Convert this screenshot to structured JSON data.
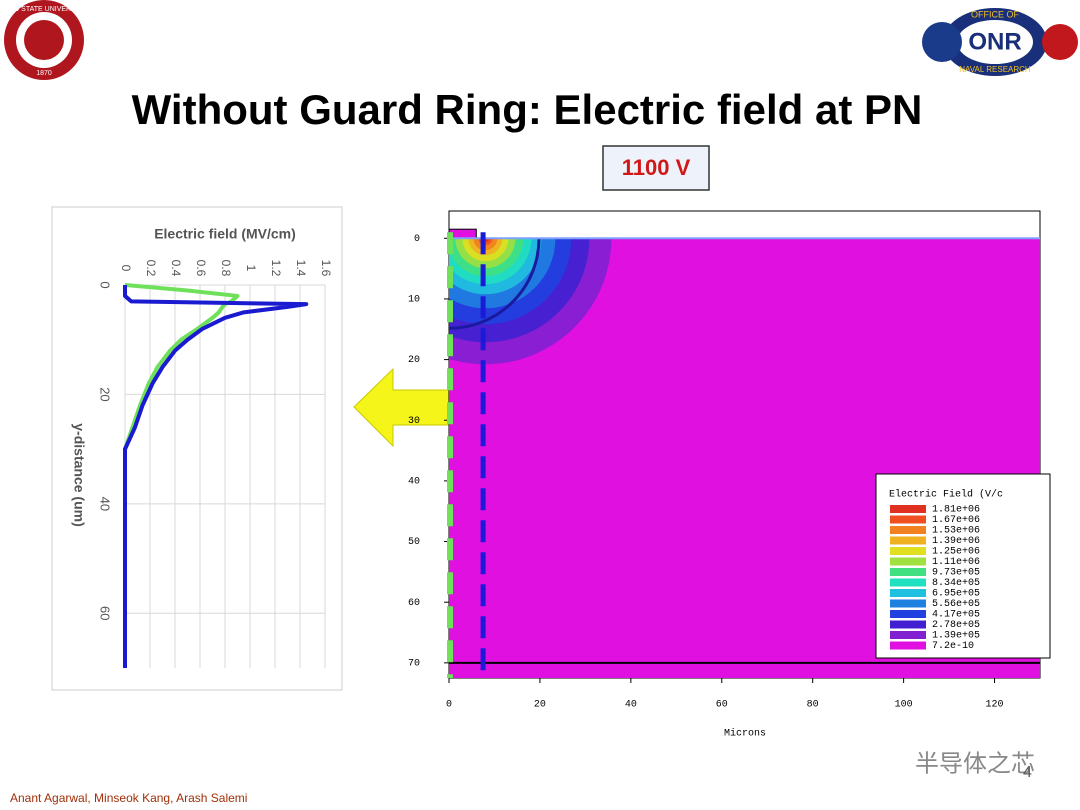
{
  "title": "Without Guard Ring: Electric field at PN",
  "voltage_box": "1100 V",
  "footer": "Anant Agarwal, Minseok Kang, Arash Salemi",
  "watermark": "半导体之芯",
  "page_number": "4",
  "logos": {
    "left_seal": [
      "OHIO STATE UNIVERSITY",
      "1870"
    ],
    "right": {
      "top": "OFFICE OF",
      "center": "ONR",
      "bottom": "NAVAL RESEARCH"
    }
  },
  "chart_data": [
    {
      "type": "line",
      "orientation": "rotated",
      "xlabel": "y-distance (um)",
      "ylabel": "Electric field (MV/cm)",
      "x": [
        0,
        1,
        2,
        3,
        3.5,
        4,
        5,
        6,
        8,
        10,
        12,
        15,
        18,
        22,
        26,
        30,
        40,
        50,
        60,
        70
      ],
      "xlim": [
        0,
        70
      ],
      "xticks": [
        0,
        20,
        40,
        60
      ],
      "ylim": [
        0,
        1.6
      ],
      "yticks": [
        0,
        0.2,
        0.4,
        0.6,
        0.8,
        1,
        1.2,
        1.4,
        1.6
      ],
      "grid": true,
      "series": [
        {
          "color": "#6ee05a",
          "values": [
            0,
            0.5,
            0.9,
            0.85,
            0.8,
            0.78,
            0.75,
            0.7,
            0.58,
            0.45,
            0.36,
            0.26,
            0.19,
            0.12,
            0.06,
            0,
            0,
            0,
            0,
            0
          ]
        },
        {
          "color": "#1a1ad0",
          "values": [
            0,
            0,
            0,
            0.05,
            1.45,
            1.3,
            0.95,
            0.8,
            0.62,
            0.5,
            0.4,
            0.3,
            0.22,
            0.14,
            0.08,
            0,
            0,
            0,
            0,
            0
          ]
        }
      ]
    },
    {
      "type": "contour",
      "xlabel": "Microns",
      "xlim": [
        0,
        130
      ],
      "xticks": [
        0,
        20,
        40,
        60,
        80,
        100,
        120
      ],
      "ylim": [
        -4.5,
        72.5
      ],
      "yticks": [
        0,
        10,
        20,
        30,
        40,
        50,
        60,
        70
      ],
      "legend_title": "Electric Field (V/c",
      "levels": [
        {
          "value": 1810000,
          "label": "1.81e+06",
          "color": "#e03020"
        },
        {
          "value": 1670000,
          "label": "1.67e+06",
          "color": "#f05020"
        },
        {
          "value": 1530000,
          "label": "1.53e+06",
          "color": "#f08020"
        },
        {
          "value": 1390000,
          "label": "1.39e+06",
          "color": "#f0b020"
        },
        {
          "value": 1250000,
          "label": "1.25e+06",
          "color": "#e0e020"
        },
        {
          "value": 1110000,
          "label": "1.11e+06",
          "color": "#a0e040"
        },
        {
          "value": 973000,
          "label": "9.73e+05",
          "color": "#40e080"
        },
        {
          "value": 834000,
          "label": "8.34e+05",
          "color": "#20e0c0"
        },
        {
          "value": 695000,
          "label": "6.95e+05",
          "color": "#20c0e0"
        },
        {
          "value": 556000,
          "label": "5.56e+05",
          "color": "#2080e0"
        },
        {
          "value": 417000,
          "label": "4.17e+05",
          "color": "#2040e0"
        },
        {
          "value": 278000,
          "label": "2.78e+05",
          "color": "#4020d0"
        },
        {
          "value": 139000,
          "label": "1.39e+05",
          "color": "#8020d0"
        },
        {
          "value": 7.2e-10,
          "label": "7.2e-10",
          "color": "#e010e0"
        }
      ]
    }
  ]
}
